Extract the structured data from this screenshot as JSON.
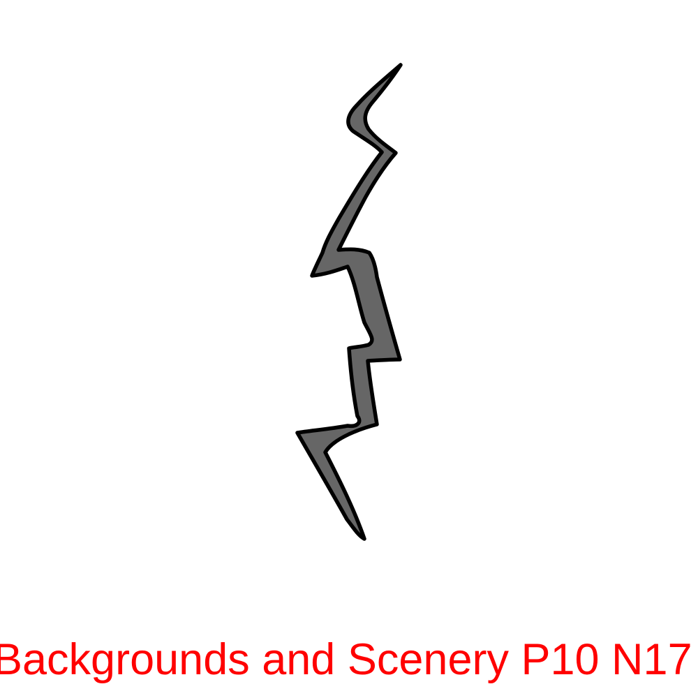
{
  "caption": {
    "text": "Backgrounds and Scenery P10 N17"
  },
  "colors": {
    "background": "#ffffff",
    "crack_fill": "#666666",
    "crack_outline": "#000000",
    "caption": "#ff0000"
  },
  "illustration": {
    "icon": "lightning-crack-icon"
  }
}
